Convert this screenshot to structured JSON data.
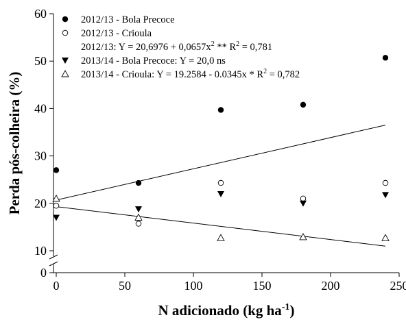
{
  "chart_data": {
    "type": "scatter",
    "xlabel": "N adicionado (kg ha",
    "xlabel_sup": "-1",
    "xlabel_end": ")",
    "ylabel": "Perda pós-colheira (%)",
    "xlim": [
      -2,
      250
    ],
    "ylim": [
      0,
      60
    ],
    "y_axis_break": [
      0,
      10
    ],
    "x_ticks": [
      0,
      50,
      100,
      150,
      200,
      250
    ],
    "x_tick_labels": [
      "0",
      "50",
      "100",
      "150",
      "200",
      "250"
    ],
    "y_ticks": [
      0,
      10,
      20,
      30,
      40,
      50,
      60
    ],
    "y_tick_labels": [
      "0",
      "10",
      "20",
      "30",
      "40",
      "50",
      "60"
    ],
    "series": [
      {
        "name": "2012/13 - Bola Precoce",
        "marker": "filled-circle",
        "x": [
          0,
          60,
          120,
          180,
          240
        ],
        "y": [
          27.0,
          24.3,
          39.7,
          40.8,
          50.7
        ]
      },
      {
        "name": "2012/13 - Crioula",
        "marker": "open-circle",
        "x": [
          0,
          60,
          120,
          180,
          240
        ],
        "y": [
          19.5,
          15.7,
          24.3,
          21.0,
          24.3
        ]
      },
      {
        "name": "2013/14 - Bola Precoce: Y = 20,0 ns",
        "marker": "filled-triangle-down",
        "x": [
          0,
          60,
          120,
          180,
          240
        ],
        "y": [
          17.0,
          18.8,
          22.0,
          20.0,
          21.8
        ]
      },
      {
        "name": "2013/14 - Crioula: Y =  19.2584 - 0.0345x *   R",
        "name_sup": "2",
        "name_end": " = 0,782",
        "marker": "open-triangle-up",
        "x": [
          0,
          60,
          120,
          180,
          240
        ],
        "y": [
          21.0,
          17.0,
          12.7,
          12.9,
          12.7
        ]
      }
    ],
    "legend_equation": {
      "prefix": "2012/13: Y = 20,6976 + 0,0657x",
      "sup1": "2",
      "mid": " **   R",
      "sup2": "2",
      "end": " = 0,781"
    },
    "fit_lines": [
      {
        "x": [
          0,
          240
        ],
        "y": [
          20.7,
          36.5
        ]
      },
      {
        "x": [
          0,
          240
        ],
        "y": [
          19.3,
          10.98
        ]
      }
    ],
    "legend_position": "top-left"
  }
}
